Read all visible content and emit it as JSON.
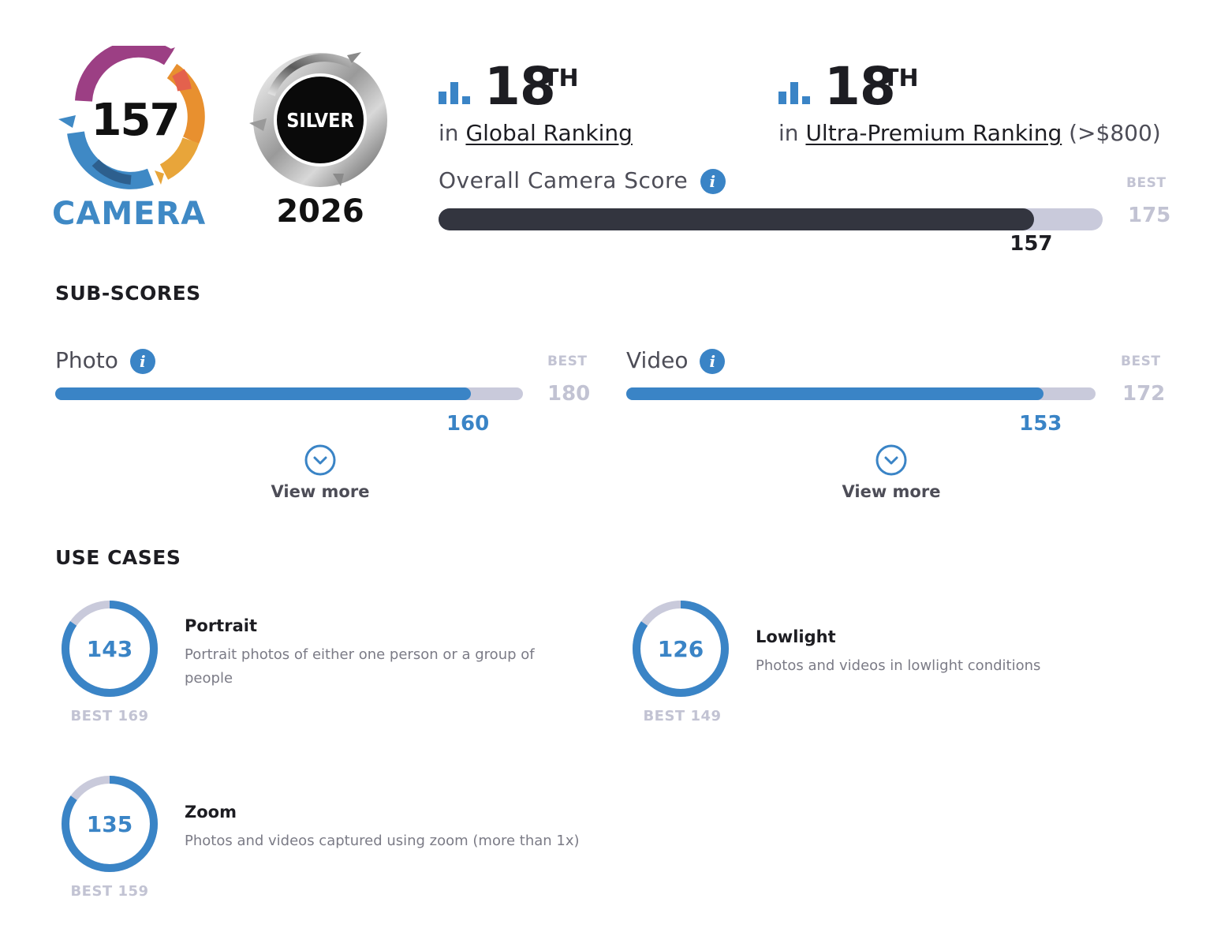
{
  "badge": {
    "score": "157",
    "label": "CAMERA",
    "award": "SILVER",
    "year": "2026"
  },
  "rankings": [
    {
      "position": "18",
      "suffix": "TH",
      "prefix": "in",
      "link_text": "Global Ranking",
      "qualifier": ""
    },
    {
      "position": "18",
      "suffix": "TH",
      "prefix": "in",
      "link_text": "Ultra-Premium Ranking",
      "qualifier": "(>$800)"
    }
  ],
  "overall": {
    "title": "Overall Camera Score",
    "info_icon": "info-icon",
    "best_label": "BEST",
    "best_value": "175",
    "score": "157",
    "score_value": 157,
    "best_numeric": 175,
    "bar_color": "#33353f"
  },
  "subscores": {
    "heading": "SUB-SCORES",
    "items": [
      {
        "title": "Photo",
        "best_label": "BEST",
        "best_value": "180",
        "score": "160",
        "score_value": 160,
        "best_numeric": 180,
        "view_more": "View more"
      },
      {
        "title": "Video",
        "best_label": "BEST",
        "best_value": "172",
        "score": "153",
        "score_value": 153,
        "best_numeric": 172,
        "view_more": "View more"
      }
    ]
  },
  "use_cases": {
    "heading": "USE CASES",
    "items": [
      {
        "title": "Portrait",
        "description_line1": "Portrait photos of either one person or a group of",
        "description_line2": "people",
        "score": "143",
        "score_value": 143,
        "best": "BEST 169",
        "best_numeric": 169
      },
      {
        "title": "Lowlight",
        "description_line1": "Photos and videos in lowlight conditions",
        "description_line2": "",
        "score": "126",
        "score_value": 126,
        "best": "BEST 149",
        "best_numeric": 149
      },
      {
        "title": "Zoom",
        "description_line1": "Photos and videos captured using zoom (more than 1x)",
        "description_line2": "",
        "score": "135",
        "score_value": 135,
        "best": "BEST 159",
        "best_numeric": 159
      }
    ]
  },
  "colors": {
    "accent": "#3a84c6",
    "track": "#c9cadb",
    "best_text": "#c2c3d3"
  }
}
